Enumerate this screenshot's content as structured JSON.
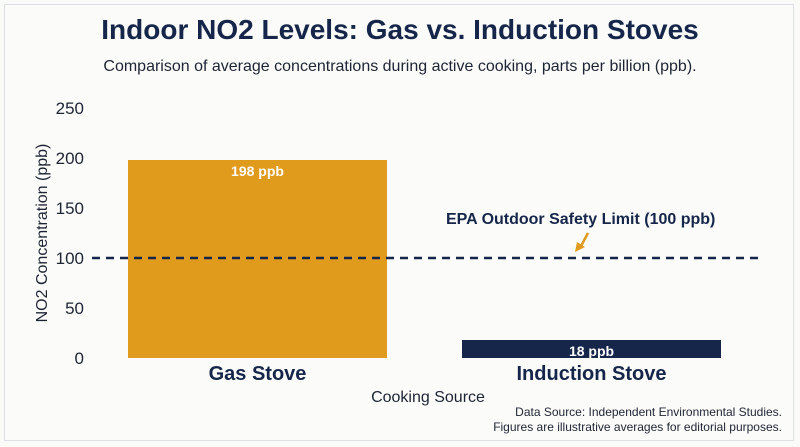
{
  "chart_data": {
    "type": "bar",
    "title": "Indoor NO2 Levels: Gas vs. Induction Stoves",
    "subtitle": "Comparison of average concentrations during active cooking, parts per billion (ppb).",
    "xlabel": "Cooking Source",
    "ylabel": "NO2 Concentration (ppb)",
    "ylim": [
      0,
      250
    ],
    "yticks": [
      0,
      50,
      100,
      150,
      200,
      250
    ],
    "categories": [
      "Gas Stove",
      "Induction Stove"
    ],
    "values": [
      198,
      18
    ],
    "data_labels": [
      "198 ppb",
      "18 ppb"
    ],
    "colors": [
      "#e09a1c",
      "#15264a"
    ],
    "reference_line": {
      "value": 100,
      "label": "EPA Outdoor Safety Limit (100 ppb)",
      "color": "#15264a",
      "style": "dashed"
    },
    "annotation_arrow_color": "#e09a1c",
    "grid": false,
    "legend": "none"
  },
  "source_note": {
    "line1": "Data Source: Independent Environmental Studies.",
    "line2": "Figures are illustrative averages for editorial purposes."
  }
}
